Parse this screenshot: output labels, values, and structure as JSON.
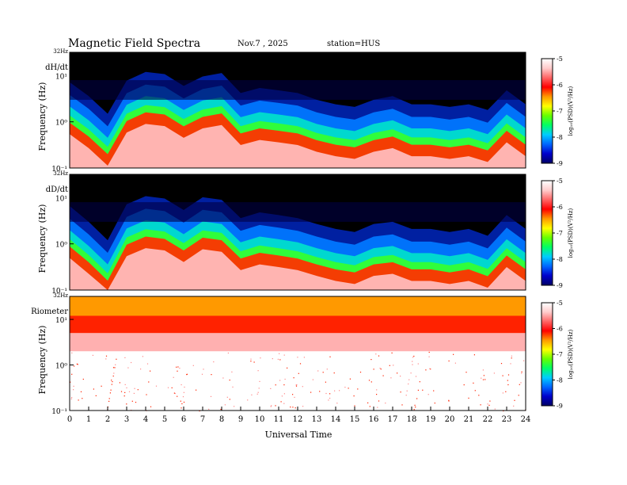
{
  "header": {
    "title": "Magnetic  Field  Spectra",
    "date": "Nov.7  , 2025",
    "station": "station=HUS"
  },
  "colors": {
    "background": "#000000",
    "colorbar_stops": [
      "#000066",
      "#0000cc",
      "#0066ff",
      "#00ccff",
      "#00ff66",
      "#66ff00",
      "#ffff00",
      "#ff9900",
      "#ff0000",
      "#ff6666",
      "#ffcccc",
      "#ffffff"
    ]
  },
  "chart_data": [
    {
      "type": "heatmap",
      "panel_label": "dH/dt",
      "top_label": "32Hz",
      "ylabel": "Frequency  (Hz)",
      "y_scale": "log",
      "ylim": [
        0.1,
        32
      ],
      "y_ticks": [
        "10⁻¹",
        "10⁰",
        "10¹"
      ],
      "colorbar": {
        "label": "log₁₀(PSD)(V²/Hz)",
        "ticks": [
          "-5",
          "-6",
          "-7",
          "-8",
          "-9"
        ],
        "range": [
          -9,
          -5
        ]
      },
      "low_freq_upper_hz": [
        1.2,
        0.6,
        0.25,
        1.3,
        2.0,
        1.8,
        1.0,
        1.6,
        1.9,
        0.7,
        0.9,
        0.8,
        0.7,
        0.5,
        0.4,
        0.35,
        0.5,
        0.6,
        0.4,
        0.4,
        0.35,
        0.4,
        0.3,
        0.8,
        0.4
      ]
    },
    {
      "type": "heatmap",
      "panel_label": "dD/dt",
      "top_label": "32Hz",
      "ylabel": "Frequency  (Hz)",
      "y_scale": "log",
      "ylim": [
        0.1,
        32
      ],
      "y_ticks": [
        "10⁻¹",
        "10⁰",
        "10¹"
      ],
      "colorbar": {
        "label": "log₁₀(PSD)(V²/Hz)",
        "ticks": [
          "-5",
          "-6",
          "-7",
          "-8",
          "-9"
        ],
        "range": [
          -9,
          -5
        ]
      },
      "low_freq_upper_hz": [
        1.1,
        0.5,
        0.2,
        1.2,
        1.8,
        1.6,
        0.9,
        1.7,
        1.5,
        0.6,
        0.8,
        0.7,
        0.6,
        0.45,
        0.35,
        0.3,
        0.45,
        0.5,
        0.35,
        0.35,
        0.3,
        0.35,
        0.25,
        0.7,
        0.35
      ]
    },
    {
      "type": "heatmap",
      "panel_label": "Riometer",
      "top_label": "32Hz",
      "ylabel": "Frequency  (Hz)",
      "y_scale": "log",
      "ylim": [
        0.1,
        32
      ],
      "y_ticks": [
        "10⁻¹",
        "10⁰",
        "10¹"
      ],
      "colorbar": {
        "label": "log₁₀(PSD)(V²/Hz)",
        "ticks": [
          "-5",
          "-6",
          "-7",
          "-8",
          "-9"
        ],
        "range": [
          -9,
          -5
        ]
      }
    }
  ],
  "x_axis": {
    "label": "Universal  Time",
    "range": [
      0,
      24
    ],
    "ticks": [
      "0",
      "1",
      "2",
      "3",
      "4",
      "5",
      "6",
      "7",
      "8",
      "9",
      "10",
      "11",
      "12",
      "13",
      "14",
      "15",
      "16",
      "17",
      "18",
      "19",
      "20",
      "21",
      "22",
      "23",
      "24"
    ]
  }
}
